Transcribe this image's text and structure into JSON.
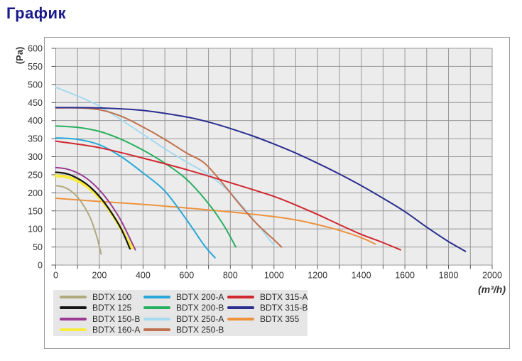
{
  "page": {
    "title": "График"
  },
  "chart_data": {
    "type": "line",
    "title": "",
    "xlabel": "(m³/h)",
    "ylabel": "(Pa)",
    "xlim": [
      0,
      2000
    ],
    "ylim": [
      0,
      600
    ],
    "x_label_step": 200,
    "x_grid_step": 100,
    "y_label_step": 50,
    "y_grid_step": 50,
    "grid": true,
    "legend_position": "bottom",
    "plot_bg_color": "#ececec",
    "grid_color": "#979797",
    "tick_text_color": "#333333",
    "series": [
      {
        "name": "BDTX 100",
        "color": "#b1aa7e",
        "width": 2,
        "points": [
          [
            0,
            220
          ],
          [
            40,
            215
          ],
          [
            80,
            200
          ],
          [
            120,
            172
          ],
          [
            160,
            128
          ],
          [
            190,
            75
          ],
          [
            208,
            30
          ]
        ]
      },
      {
        "name": "BDTX 125",
        "color": "#151515",
        "width": 2.2,
        "points": [
          [
            0,
            257
          ],
          [
            50,
            253
          ],
          [
            100,
            240
          ],
          [
            150,
            220
          ],
          [
            200,
            190
          ],
          [
            250,
            150
          ],
          [
            300,
            100
          ],
          [
            340,
            45
          ]
        ]
      },
      {
        "name": "BDTX 150-B",
        "color": "#9a3d92",
        "width": 2,
        "points": [
          [
            0,
            270
          ],
          [
            50,
            266
          ],
          [
            100,
            255
          ],
          [
            150,
            236
          ],
          [
            200,
            208
          ],
          [
            250,
            170
          ],
          [
            300,
            122
          ],
          [
            365,
            42
          ]
        ]
      },
      {
        "name": "BDTX 160-A",
        "color": "#f7ec3e",
        "width": 4,
        "points": [
          [
            0,
            247
          ],
          [
            50,
            244
          ],
          [
            100,
            233
          ],
          [
            150,
            214
          ],
          [
            200,
            186
          ],
          [
            250,
            148
          ],
          [
            300,
            100
          ],
          [
            350,
            48
          ]
        ]
      },
      {
        "name": "BDTX 200-A",
        "color": "#29a8d8",
        "width": 2,
        "points": [
          [
            0,
            352
          ],
          [
            100,
            348
          ],
          [
            200,
            333
          ],
          [
            300,
            300
          ],
          [
            400,
            255
          ],
          [
            500,
            205
          ],
          [
            600,
            125
          ],
          [
            680,
            55
          ],
          [
            730,
            20
          ]
        ]
      },
      {
        "name": "BDTX 200-B",
        "color": "#27b05e",
        "width": 2,
        "points": [
          [
            0,
            385
          ],
          [
            100,
            381
          ],
          [
            200,
            370
          ],
          [
            300,
            348
          ],
          [
            400,
            318
          ],
          [
            500,
            282
          ],
          [
            600,
            237
          ],
          [
            700,
            170
          ],
          [
            770,
            110
          ],
          [
            825,
            50
          ]
        ]
      },
      {
        "name": "BDTX 250-A",
        "color": "#a6d9f0",
        "width": 2,
        "points": [
          [
            0,
            492
          ],
          [
            100,
            468
          ],
          [
            200,
            440
          ],
          [
            300,
            402
          ],
          [
            400,
            362
          ],
          [
            500,
            322
          ],
          [
            600,
            285
          ],
          [
            700,
            250
          ],
          [
            800,
            200
          ],
          [
            900,
            130
          ],
          [
            1000,
            55
          ]
        ]
      },
      {
        "name": "BDTX 250-B",
        "color": "#c0714d",
        "width": 2,
        "points": [
          [
            0,
            435
          ],
          [
            100,
            435
          ],
          [
            200,
            430
          ],
          [
            300,
            412
          ],
          [
            400,
            382
          ],
          [
            500,
            348
          ],
          [
            600,
            310
          ],
          [
            680,
            283
          ],
          [
            760,
            230
          ],
          [
            840,
            170
          ],
          [
            920,
            115
          ],
          [
            1000,
            70
          ],
          [
            1035,
            50
          ]
        ]
      },
      {
        "name": "BDTX 315-A",
        "color": "#d0282e",
        "width": 2,
        "points": [
          [
            0,
            343
          ],
          [
            200,
            325
          ],
          [
            400,
            296
          ],
          [
            600,
            264
          ],
          [
            800,
            228
          ],
          [
            1000,
            190
          ],
          [
            1100,
            166
          ],
          [
            1200,
            140
          ],
          [
            1300,
            112
          ],
          [
            1400,
            85
          ],
          [
            1500,
            62
          ],
          [
            1580,
            42
          ]
        ]
      },
      {
        "name": "BDTX 315-B",
        "color": "#2b2f8f",
        "width": 2,
        "points": [
          [
            0,
            436
          ],
          [
            200,
            435
          ],
          [
            400,
            428
          ],
          [
            600,
            410
          ],
          [
            700,
            396
          ],
          [
            800,
            378
          ],
          [
            900,
            358
          ],
          [
            1000,
            335
          ],
          [
            1100,
            310
          ],
          [
            1200,
            282
          ],
          [
            1300,
            252
          ],
          [
            1400,
            220
          ],
          [
            1500,
            185
          ],
          [
            1600,
            148
          ],
          [
            1700,
            105
          ],
          [
            1800,
            65
          ],
          [
            1878,
            38
          ]
        ]
      },
      {
        "name": "BDTX 355",
        "color": "#ec9340",
        "width": 2,
        "points": [
          [
            0,
            185
          ],
          [
            200,
            176
          ],
          [
            400,
            168
          ],
          [
            600,
            158
          ],
          [
            800,
            147
          ],
          [
            1000,
            134
          ],
          [
            1100,
            125
          ],
          [
            1200,
            112
          ],
          [
            1300,
            96
          ],
          [
            1400,
            76
          ],
          [
            1465,
            58
          ]
        ]
      }
    ]
  }
}
